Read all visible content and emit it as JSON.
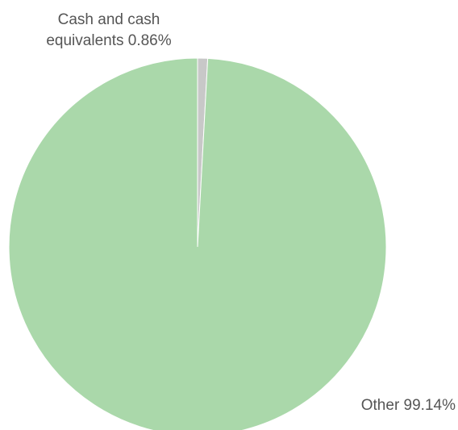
{
  "chart_data": {
    "type": "pie",
    "title": "",
    "slices": [
      {
        "label_lines": [
          "Cash and cash",
          "equivalents 0.86%"
        ],
        "value": 0.86,
        "color": "#c8c8c8"
      },
      {
        "label_lines": [
          "Other 99.14%"
        ],
        "value": 99.14,
        "color": "#aad8aa"
      }
    ]
  }
}
